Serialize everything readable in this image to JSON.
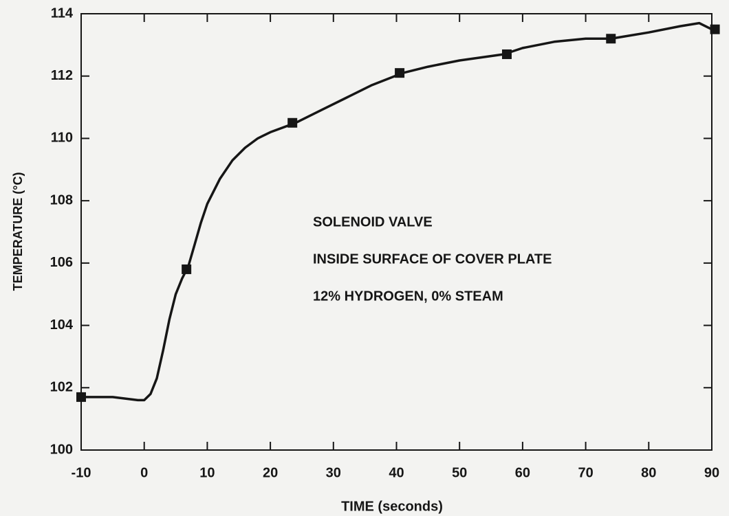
{
  "chart_data": {
    "type": "line",
    "xlabel": "TIME (seconds)",
    "ylabel": "TEMPERATURE (°C)",
    "annotations": [
      "SOLENOID VALVE",
      "INSIDE SURFACE OF COVER PLATE",
      "12% HYDROGEN, 0% STEAM"
    ],
    "series": [
      {
        "color": "#161616",
        "x": [
          -10,
          -5,
          -1,
          0,
          1,
          2,
          3,
          4,
          5,
          6,
          7,
          8,
          9,
          10,
          12,
          14,
          16,
          18,
          20,
          24,
          28,
          32,
          36,
          41,
          45,
          50,
          57,
          60,
          65,
          70,
          74,
          80,
          85,
          88,
          90
        ],
        "values": [
          101.7,
          101.7,
          101.6,
          101.6,
          101.8,
          102.3,
          103.2,
          104.2,
          105.0,
          105.5,
          105.9,
          106.6,
          107.3,
          107.9,
          108.7,
          109.3,
          109.7,
          110.0,
          110.2,
          110.5,
          110.9,
          111.3,
          111.7,
          112.1,
          112.3,
          112.5,
          112.7,
          112.9,
          113.1,
          113.2,
          113.2,
          113.4,
          113.6,
          113.7,
          113.5
        ]
      }
    ],
    "markers": {
      "color": "#161616",
      "x": [
        -10,
        6.7,
        23.5,
        40.5,
        57.5,
        74,
        90.5
      ],
      "values": [
        101.7,
        105.8,
        110.5,
        112.1,
        112.7,
        113.2,
        113.5
      ]
    },
    "xlim": [
      -10,
      90
    ],
    "ylim": [
      100,
      114
    ],
    "xticks": [
      -10,
      0,
      10,
      20,
      30,
      40,
      50,
      60,
      70,
      80,
      90
    ],
    "yticks": [
      100,
      102,
      104,
      106,
      108,
      110,
      112,
      114
    ]
  }
}
